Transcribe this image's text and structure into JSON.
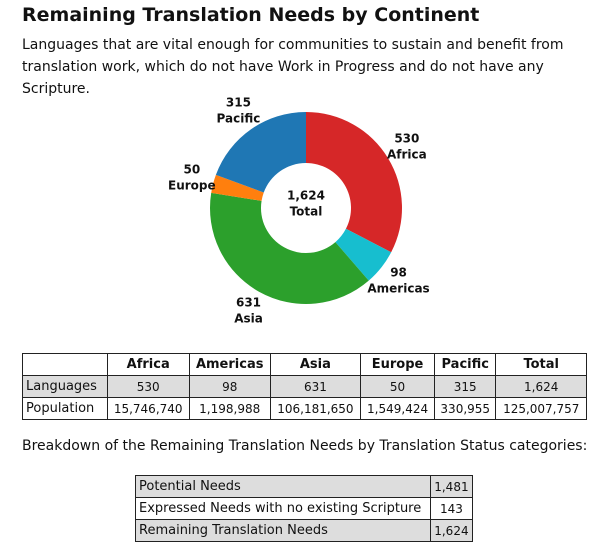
{
  "chart_data": {
    "type": "donut",
    "title": "Remaining Translation Needs by Continent",
    "subtitle": "Languages that are vital enough for communities to sustain and benefit from translation work, which do not have Work in Progress and do not have any Scripture.",
    "categories": [
      "Africa",
      "Americas",
      "Asia",
      "Europe",
      "Pacific"
    ],
    "values": [
      530,
      98,
      631,
      50,
      315
    ],
    "colors": [
      "#d62728",
      "#17becf",
      "#2ca02c",
      "#ff7f0e",
      "#1f77b4"
    ],
    "center_value": "1,624",
    "center_title": "Total"
  },
  "continent_table": {
    "header": [
      "Africa",
      "Americas",
      "Asia",
      "Europe",
      "Pacific",
      "Total"
    ],
    "rows": [
      [
        "Languages",
        "530",
        "98",
        "631",
        "50",
        "315",
        "1,624"
      ],
      [
        "Population",
        "15,746,740",
        "1,198,988",
        "106,181,650",
        "1,549,424",
        "330,955",
        "125,007,757"
      ]
    ]
  },
  "breakdown_intro": "Breakdown of the Remaining Translation Needs by Translation Status categories:",
  "status_table": {
    "rows": [
      [
        "Potential Needs",
        "1,481"
      ],
      [
        "Expressed Needs with no existing Scripture",
        "143"
      ],
      [
        "Remaining Translation Needs",
        "1,624"
      ]
    ]
  }
}
